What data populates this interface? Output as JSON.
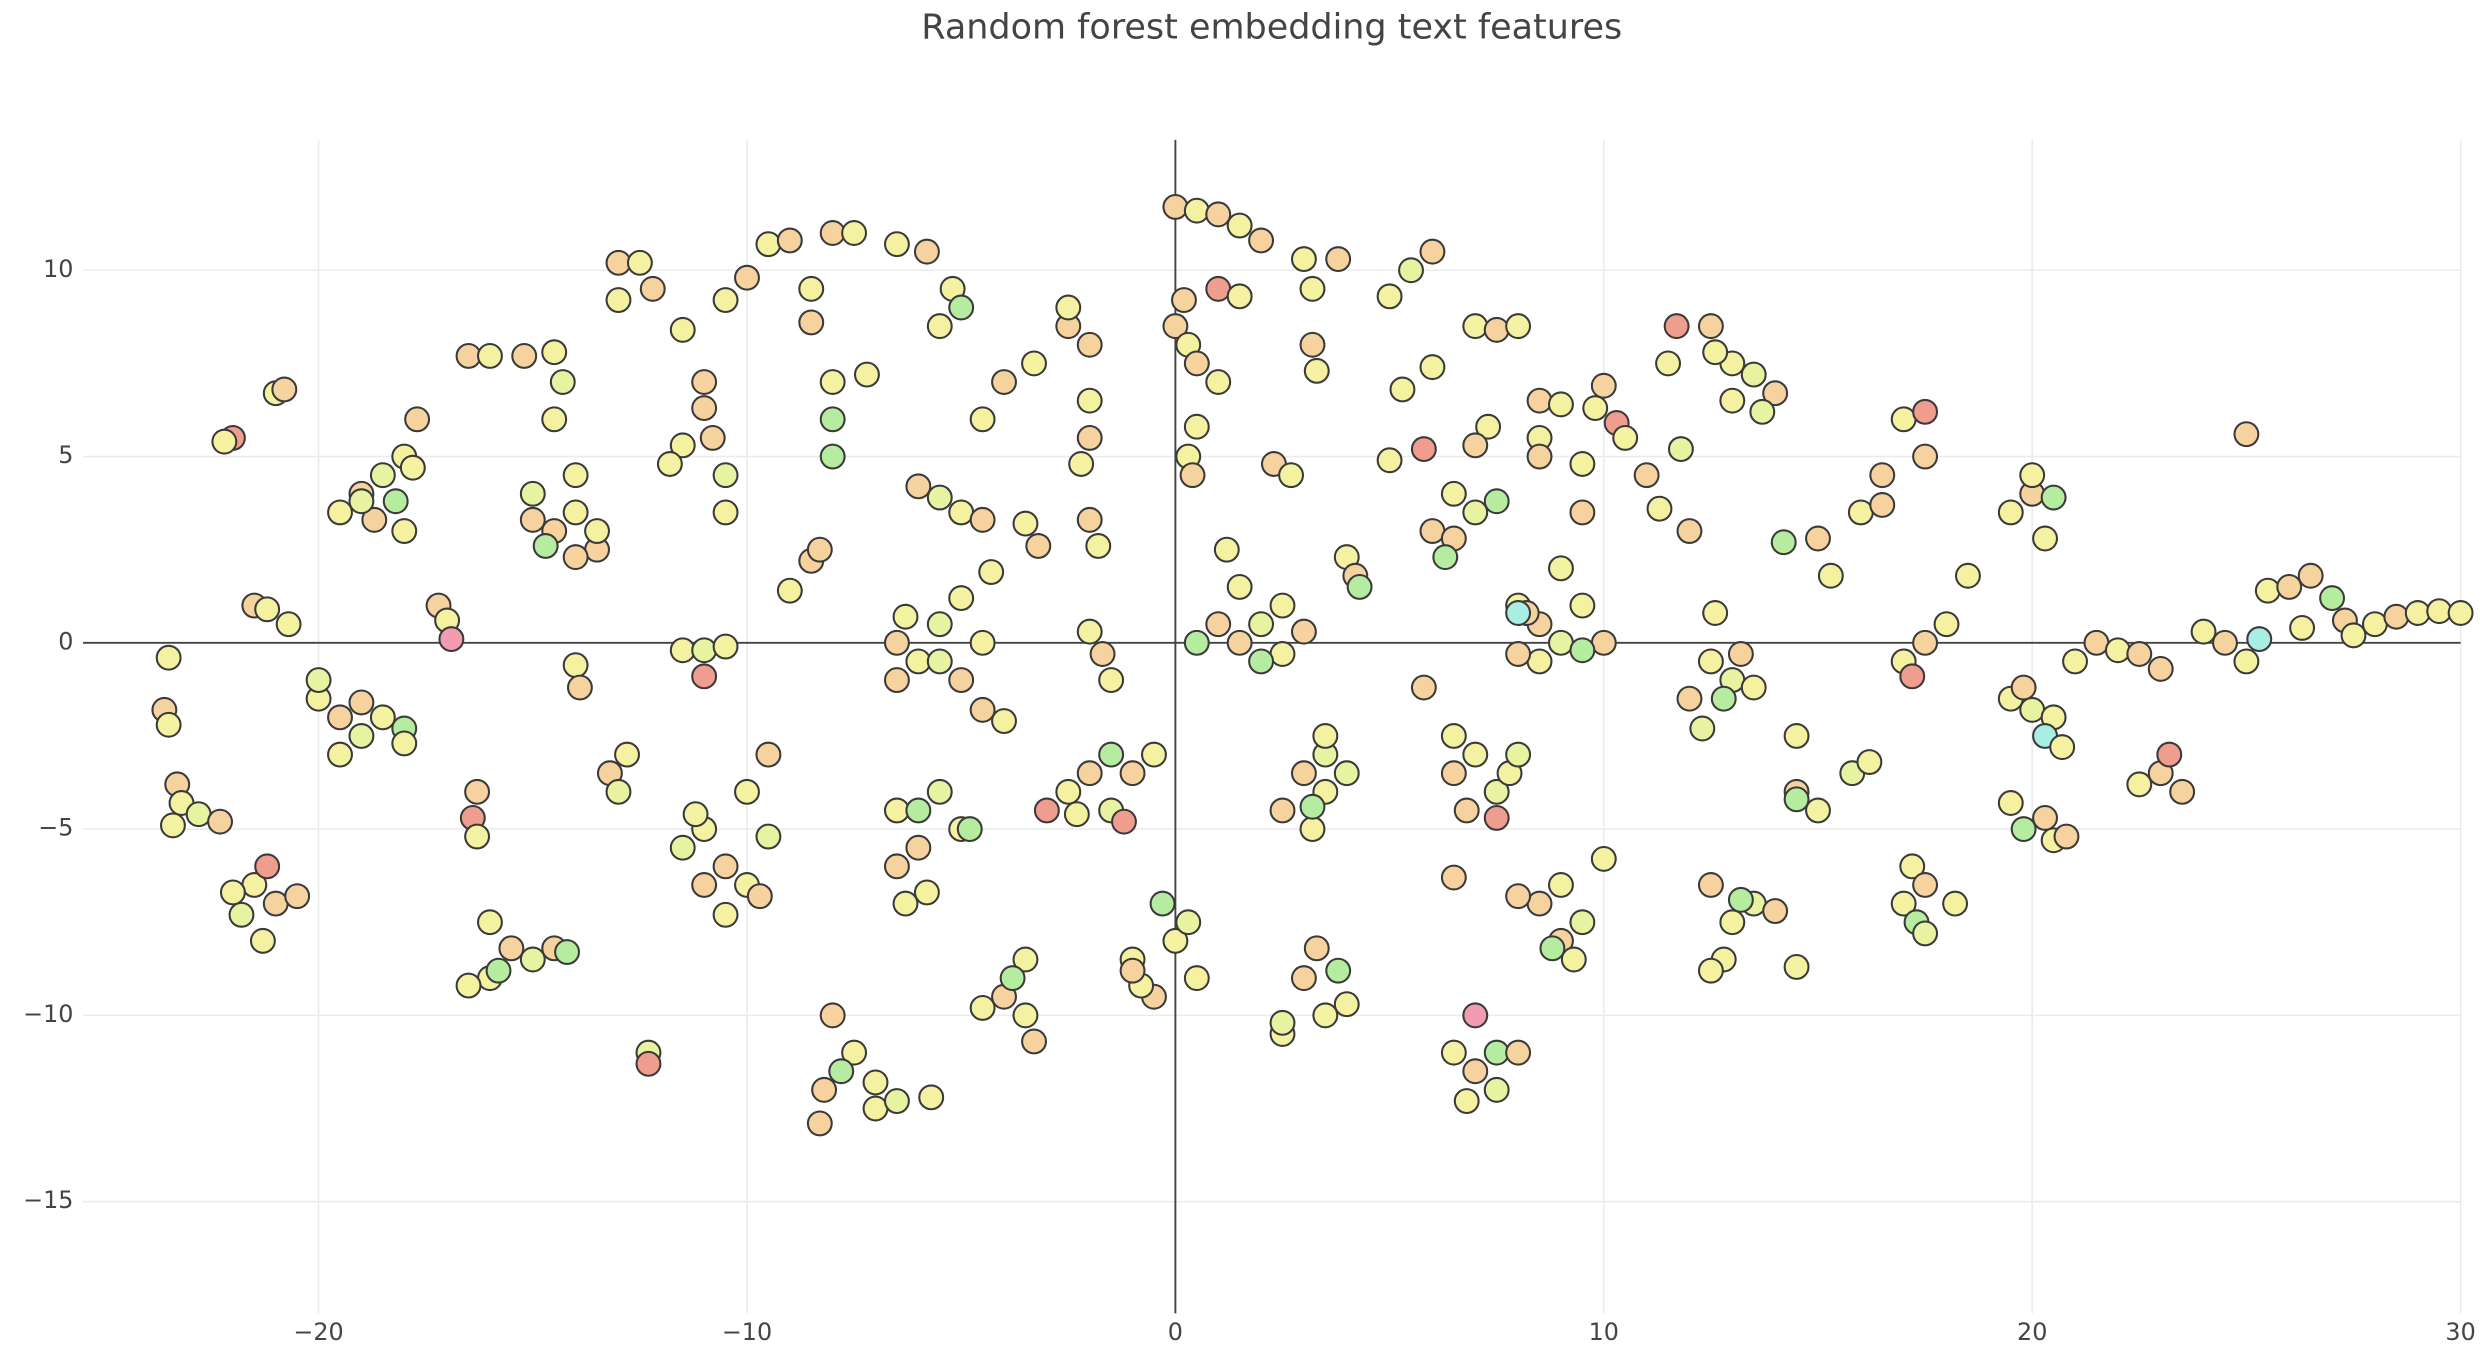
{
  "chart_data": {
    "type": "scatter",
    "title": "Random forest embedding text features",
    "xlim": [
      -25.5,
      30
    ],
    "ylim": [
      -18,
      13.5
    ],
    "xticks": [
      {
        "value": -20,
        "label": "−20"
      },
      {
        "value": -10,
        "label": "−10"
      },
      0,
      10,
      20,
      30
    ],
    "yticks": [
      {
        "value": -15,
        "label": "−15"
      },
      {
        "value": -10,
        "label": "−10"
      },
      {
        "value": -5,
        "label": "−5"
      },
      0,
      5,
      10
    ],
    "grid": true,
    "zeroline": true,
    "marker_outline": "#3a3a3a",
    "x": [
      -23.5,
      -23.6,
      -23.5,
      -23.3,
      -23.2,
      -22.8,
      -22.3,
      -23.4,
      -22,
      -22.2,
      -21,
      -20.8,
      -21.5,
      -21.2,
      -20.7,
      -21.5,
      -21,
      -21.8,
      -21.3,
      -20.5,
      -21.2,
      -22,
      -19.5,
      -19,
      -18.5,
      -18,
      -18.7,
      -18,
      -19,
      -17.7,
      -18.2,
      -17.8,
      -20,
      -19.5,
      -19,
      -18.5,
      -18,
      -19.5,
      -19,
      -20,
      -18,
      -16.5,
      -16,
      -15.2,
      -14.5,
      -17.2,
      -17,
      -16.9,
      -16.3,
      -16.4,
      -16.3,
      -16,
      -15.5,
      -16,
      -15,
      -14.5,
      -16.5,
      -15.8,
      -14.2,
      -14.5,
      -14,
      -13.5,
      -14,
      -15,
      -14.5,
      -14.3,
      -13.5,
      -14,
      -15,
      -14.7,
      -13,
      -12.5,
      -13,
      -12.2,
      -14,
      -13.9,
      -13.2,
      -13,
      -12.8,
      -12.3,
      -12.3,
      -11.5,
      -11,
      -11.5,
      -10.8,
      -10.5,
      -11.8,
      -10.5,
      -11,
      -11.5,
      -11,
      -10.5,
      -11,
      -11,
      -10.5,
      -11.5,
      -10,
      -9.5,
      -10,
      -11,
      -10.5,
      -9.5,
      -9.7,
      -11.2,
      -10.5,
      -10,
      -9.5,
      -9,
      -8.5,
      -8.5,
      -8,
      -7.5,
      -8,
      -8,
      -8,
      -8.5,
      -9,
      -8.3,
      -7.2,
      -8,
      -7.5,
      -8.2,
      -7,
      -6.5,
      -8.3,
      -7,
      -5.7,
      -7.8,
      -6.5,
      -5.8,
      -5.2,
      -5.5,
      -5,
      -6.5,
      -6,
      -5.5,
      -5,
      -4.5,
      -6.5,
      -5,
      -4.3,
      -4.5,
      -4,
      -5.5,
      -6.3,
      -6,
      -5.5,
      -5,
      -4.5,
      -6.5,
      -6,
      -5.5,
      -5,
      -6.5,
      -5.8,
      -4.8,
      -6.3,
      -6,
      -4.5,
      -4,
      -3.3,
      -2.5,
      -2.5,
      -3.5,
      -3.2,
      -3.5,
      -4,
      -3.5,
      -3.3,
      -3.8,
      -4.5,
      -2,
      -2,
      -2,
      -2.2,
      -2,
      -1.8,
      -2,
      -1.7,
      -1.5,
      -2,
      -2.5,
      -1.5,
      -1,
      -0.5,
      -2.3,
      -1.2,
      -3,
      -1.5,
      -1,
      -0.5,
      0,
      0.3,
      -0.8,
      -1,
      0.5,
      -0.3,
      0,
      0.5,
      1,
      1.5,
      2,
      0,
      0.3,
      0.5,
      1,
      0.2,
      0.3,
      0.4,
      0.5,
      1,
      1.5,
      1.5,
      1.5,
      2,
      2.5,
      1,
      2.5,
      3,
      2,
      1.2,
      0.5,
      2.3,
      2.7,
      3.2,
      3.2,
      3.3,
      3,
      3.8,
      3,
      3.5,
      3.5,
      2.5,
      3.2,
      4,
      3.5,
      3.2,
      2.5,
      3,
      3.5,
      3.3,
      4,
      2.5,
      3.8,
      4,
      4.2,
      4.3,
      5,
      5.5,
      6,
      5.3,
      6,
      5,
      5.8,
      6,
      6.5,
      7,
      6.5,
      7.5,
      6.3,
      7.3,
      7,
      7,
      7.5,
      8,
      6.5,
      7,
      7.5,
      6.8,
      7.8,
      6.5,
      7.5,
      8,
      6.5,
      6.5,
      7,
      7.5,
      7,
      6.8,
      7.5,
      8,
      5.8,
      8.5,
      9,
      9.8,
      10,
      10.3,
      8.5,
      8.5,
      9.5,
      8,
      8.5,
      9,
      9.5,
      8.2,
      8.5,
      10,
      9.5,
      9,
      9.5,
      8,
      8,
      8.5,
      9,
      9.5,
      9,
      9.3,
      8,
      10,
      8.8,
      10.5,
      11,
      11.3,
      11.8,
      12,
      11.5,
      11.7,
      12.5,
      13,
      13.5,
      13,
      14,
      12.6,
      13.7,
      12.5,
      13,
      12,
      13.5,
      12.6,
      13.2,
      12.3,
      12.8,
      12.5,
      13,
      13.5,
      12.8,
      14,
      12.5,
      13.2,
      14.5,
      14.2,
      15,
      16,
      16.5,
      17,
      17.5,
      15.3,
      16.5,
      17.5,
      14.5,
      14.5,
      15,
      15.8,
      14.5,
      16.2,
      17,
      17.5,
      18,
      17.2,
      18.5,
      17.2,
      17.5,
      17,
      17.3,
      17.5,
      18.2,
      19.5,
      20,
      20,
      20.5,
      20.3,
      19.5,
      20,
      20.5,
      20.3,
      20.7,
      19.8,
      19.5,
      20.3,
      20.5,
      19.8,
      20.8,
      21,
      21.5,
      22,
      23,
      22.5,
      22.5,
      23,
      23.2,
      23.5,
      24,
      24.5,
      25,
      25,
      25.3,
      25.5,
      26,
      26.5,
      27,
      27.3,
      26.3,
      27.5,
      28,
      28.5,
      29,
      29.5,
      30
    ],
    "values": [
      -0.4,
      -1.8,
      -2.2,
      -3.8,
      -4.3,
      -4.6,
      -4.8,
      -4.9,
      5.5,
      5.4,
      6.7,
      6.8,
      1,
      0.9,
      0.5,
      -6.5,
      -7,
      -7.3,
      -8,
      -6.8,
      -6,
      -6.7,
      3.5,
      4,
      4.5,
      5,
      3.3,
      3,
      3.8,
      6,
      3.8,
      4.7,
      -1.5,
      -2,
      -2.5,
      -2,
      -2.3,
      -3,
      -1.6,
      -1,
      -2.7,
      7.7,
      7.7,
      7.7,
      7.8,
      1,
      0.6,
      0.1,
      -4,
      -4.7,
      -5.2,
      -7.5,
      -8.2,
      -9,
      -8.5,
      -8.2,
      -9.2,
      -8.8,
      -8.3,
      3,
      3.5,
      2.5,
      4.5,
      4,
      6,
      7,
      3,
      2.3,
      3.3,
      2.6,
      10.2,
      10.2,
      9.2,
      9.5,
      -0.6,
      -1.2,
      -3.5,
      -4,
      -3,
      -11,
      -11.3,
      8.4,
      7,
      5.3,
      5.5,
      4.5,
      4.8,
      3.5,
      6.3,
      -0.2,
      -0.2,
      -0.1,
      -0.9,
      -5,
      -6,
      -5.5,
      -4,
      -3,
      -6.5,
      -6.5,
      -7.3,
      -5.2,
      -6.8,
      -4.6,
      9.2,
      9.8,
      10.7,
      10.8,
      9.5,
      8.6,
      11,
      11,
      7,
      6,
      5,
      2.2,
      1.4,
      2.5,
      7.2,
      -10,
      -11,
      -12,
      -12.5,
      -12.3,
      -12.9,
      -11.8,
      -12.2,
      -11.5,
      10.7,
      10.5,
      9.5,
      8.5,
      9,
      0,
      -0.5,
      0.5,
      -1,
      0,
      -1,
      1.2,
      1.9,
      -1.8,
      -2.1,
      -0.5,
      0.7,
      4.2,
      3.9,
      3.5,
      3.3,
      -4.5,
      -5.5,
      -4,
      -5,
      -6,
      -6.7,
      -5,
      -7,
      -4.5,
      6,
      7,
      7.5,
      8.5,
      9,
      3.2,
      2.6,
      -8.5,
      -9.5,
      -10,
      -10.7,
      -9,
      -9.8,
      8,
      6.5,
      5.5,
      4.8,
      3.3,
      2.6,
      0.3,
      -0.3,
      -1,
      -3.5,
      -4,
      -4.5,
      -3.5,
      -3,
      -4.6,
      -4.8,
      -4.5,
      -3,
      -8.5,
      -9.5,
      -8,
      -7.5,
      -9.2,
      -8.8,
      -9,
      -7,
      11.7,
      11.6,
      11.5,
      11.2,
      10.8,
      8.5,
      8,
      7.5,
      7,
      9.2,
      5,
      4.5,
      5.8,
      9.5,
      9.3,
      1.5,
      0,
      0.5,
      1,
      0.5,
      -0.3,
      0.3,
      -0.5,
      2.5,
      0,
      4.8,
      4.5,
      9.5,
      8,
      7.3,
      10.3,
      10.3,
      -3.5,
      -4,
      -3,
      -4.5,
      -5,
      -3.5,
      -2.5,
      -4.4,
      -10.5,
      -9,
      -10,
      -8.2,
      -9.7,
      -10.2,
      -8.8,
      2.3,
      1.8,
      1.5,
      9.3,
      10,
      10.5,
      6.8,
      7.4,
      4.9,
      5.2,
      3,
      4,
      3.5,
      2.8,
      3.8,
      2.3,
      5.8,
      5.3,
      8.5,
      8.4,
      8.5,
      -3.5,
      -3,
      -4,
      -4.5,
      -3.5,
      -2.5,
      -4.7,
      -3,
      -6.3,
      -11,
      -11.5,
      -12,
      -10,
      -12.3,
      -11,
      -11,
      -1.2,
      6.5,
      6.4,
      6.3,
      6.9,
      5.9,
      5.5,
      5,
      4.8,
      1,
      0.5,
      0,
      1,
      0.8,
      -0.5,
      0,
      -0.2,
      2,
      3.5,
      -0.3,
      0.8,
      -7,
      -6.5,
      -7.5,
      -8,
      -8.5,
      -6.8,
      -5.8,
      -8.2,
      5.5,
      4.5,
      3.6,
      5.2,
      3,
      7.5,
      8.5,
      8.5,
      7.5,
      7.2,
      6.5,
      6.7,
      7.8,
      6.2,
      -0.5,
      -1,
      -1.5,
      -1.2,
      0.8,
      -0.3,
      -2.3,
      -1.5,
      -6.5,
      -7.5,
      -7,
      -8.5,
      -7.2,
      -8.8,
      -6.9,
      -8.7,
      2.7,
      2.8,
      3.5,
      4.5,
      6,
      5,
      1.8,
      3.7,
      6.2,
      -2.5,
      -4,
      -4.5,
      -3.5,
      -4.2,
      -3.2,
      -0.5,
      0,
      0.5,
      -0.9,
      1.8,
      -6,
      -6.5,
      -7,
      -7.5,
      -7.8,
      -7,
      3.5,
      4,
      4.5,
      3.9,
      2.8,
      -1.5,
      -1.8,
      -2,
      -2.5,
      -2.8,
      -1.2,
      -4.3,
      -4.7,
      -5.3,
      -5,
      -5.2,
      -0.5,
      0,
      -0.2,
      -0.7,
      -0.3,
      -3.8,
      -3.5,
      -3,
      -4,
      0.3,
      0,
      5.6,
      -0.5,
      0.1,
      1.4,
      1.5,
      1.8,
      1.2,
      0.6,
      0.4,
      0.2,
      0.5,
      0.7,
      0.8,
      0.85,
      0.8
    ],
    "colors": [
      "#f4f1a0",
      "#f6d29e",
      "#f4f1a0",
      "#f6d29e",
      "#f4f1a0",
      "#e8f3a2",
      "#f6d29e",
      "#f4f1a0",
      "#ee9d8e",
      "#f4f1a0",
      "#f4f1a0",
      "#f6d29e",
      "#f6d29e",
      "#f4f1a0",
      "#f4f1a0",
      "#f4f1a0",
      "#f6d29e",
      "#e8f3a2",
      "#f4f1a0",
      "#f6d29e",
      "#ee9d8e",
      "#f4f1a0",
      "#f4f1a0",
      "#f6d29e",
      "#e8f3a2",
      "#f4f1a0",
      "#f6d29e",
      "#f4f1a0",
      "#e8f3a2",
      "#f6d29e",
      "#b5eca0",
      "#f4f1a0",
      "#f4f1a0",
      "#f6d29e",
      "#e8f3a2",
      "#f4f1a0",
      "#b5eca0",
      "#f4f1a0",
      "#f6d29e",
      "#e8f3a2",
      "#f4f1a0",
      "#f6d29e",
      "#f4f1a0",
      "#f6d29e",
      "#f4f1a0",
      "#f6d29e",
      "#f4f1a0",
      "#f39bb0",
      "#f6d29e",
      "#ee9d8e",
      "#f4f1a0",
      "#f4f1a0",
      "#f6d29e",
      "#f4f1a0",
      "#e8f3a2",
      "#f6d29e",
      "#f4f1a0",
      "#b5eca0",
      "#b5eca0",
      "#f6d29e",
      "#f4f1a0",
      "#f6d29e",
      "#f4f1a0",
      "#e8f3a2",
      "#f4f1a0",
      "#e8f3a2",
      "#f4f1a0",
      "#f6d29e",
      "#f6d29e",
      "#b5eca0",
      "#f6d29e",
      "#f4f1a0",
      "#f4f1a0",
      "#f6d29e",
      "#f4f1a0",
      "#f6d29e",
      "#f6d29e",
      "#e8f3a2",
      "#f4f1a0",
      "#e8f3a2",
      "#ee9d8e",
      "#f4f1a0",
      "#f6d29e",
      "#f4f1a0",
      "#f6d29e",
      "#e8f3a2",
      "#f4f1a0",
      "#f4f1a0",
      "#f6d29e",
      "#f4f1a0",
      "#e8f3a2",
      "#f4f1a0",
      "#ee9d8e",
      "#f4f1a0",
      "#f6d29e",
      "#e8f3a2",
      "#f4f1a0",
      "#f6d29e",
      "#f4f1a0",
      "#f6d29e",
      "#f4f1a0",
      "#e8f3a2",
      "#f6d29e",
      "#f4f1a0",
      "#f4f1a0",
      "#f6d29e",
      "#f4f1a0",
      "#f6d29e",
      "#f4f1a0",
      "#f6d29e",
      "#f6d29e",
      "#f4f1a0",
      "#f4f1a0",
      "#b5eca0",
      "#b5eca0",
      "#f6d29e",
      "#f4f1a0",
      "#f6d29e",
      "#f4f1a0",
      "#f6d29e",
      "#f4f1a0",
      "#f6d29e",
      "#f4f1a0",
      "#e8f3a2",
      "#f6d29e",
      "#f4f1a0",
      "#f4f1a0",
      "#b5eca0",
      "#f4f1a0",
      "#f6d29e",
      "#f4f1a0",
      "#f4f1a0",
      "#b5eca0",
      "#f6d29e",
      "#f4f1a0",
      "#e8f3a2",
      "#f6d29e",
      "#f4f1a0",
      "#f6d29e",
      "#f4f1a0",
      "#f4f1a0",
      "#f6d29e",
      "#f4f1a0",
      "#e8f3a2",
      "#f4f1a0",
      "#f6d29e",
      "#e8f3a2",
      "#f4f1a0",
      "#f6d29e",
      "#f4f1a0",
      "#f6d29e",
      "#e8f3a2",
      "#f4f1a0",
      "#f6d29e",
      "#f4f1a0",
      "#b5eca0",
      "#f4f1a0",
      "#b5eca0",
      "#f4f1a0",
      "#f6d29e",
      "#f4f1a0",
      "#f6d29e",
      "#f4f1a0",
      "#f4f1a0",
      "#f6d29e",
      "#f4f1a0",
      "#f6d29e",
      "#f4f1a0",
      "#f6d29e",
      "#b5eca0",
      "#f4f1a0",
      "#f6d29e",
      "#f4f1a0",
      "#f6d29e",
      "#f4f1a0",
      "#f6d29e",
      "#f4f1a0",
      "#f4f1a0",
      "#f6d29e",
      "#f4f1a0",
      "#f6d29e",
      "#f4f1a0",
      "#e8f3a2",
      "#f6d29e",
      "#f4f1a0",
      "#f4f1a0",
      "#ee9d8e",
      "#ee9d8e",
      "#b5eca0",
      "#f4f1a0",
      "#f6d29e",
      "#f4f1a0",
      "#e8f3a2",
      "#f4f1a0",
      "#f6d29e",
      "#f4f1a0",
      "#b5eca0",
      "#f6d29e",
      "#f4f1a0",
      "#f6d29e",
      "#f4f1a0",
      "#f6d29e",
      "#f6d29e",
      "#f4f1a0",
      "#f6d29e",
      "#f4f1a0",
      "#f6d29e",
      "#f4f1a0",
      "#f6d29e",
      "#f4f1a0",
      "#ee9d8e",
      "#f4f1a0",
      "#f4f1a0",
      "#f6d29e",
      "#e8f3a2",
      "#f4f1a0",
      "#f6d29e",
      "#f4f1a0",
      "#f6d29e",
      "#b5eca0",
      "#f4f1a0",
      "#b5eca0",
      "#f6d29e",
      "#f4f1a0",
      "#f4f1a0",
      "#f6d29e",
      "#f4f1a0",
      "#f4f1a0",
      "#f6d29e",
      "#f6d29e",
      "#f4f1a0",
      "#e8f3a2",
      "#f6d29e",
      "#f4f1a0",
      "#e8f3a2",
      "#f4f1a0",
      "#b5eca0",
      "#f4f1a0",
      "#f6d29e",
      "#f4f1a0",
      "#f6d29e",
      "#f4f1a0",
      "#e8f3a2",
      "#b5eca0",
      "#f4f1a0",
      "#f6d29e",
      "#b5eca0",
      "#f4f1a0",
      "#e8f3a2",
      "#f6d29e",
      "#f4f1a0",
      "#f4f1a0",
      "#f4f1a0",
      "#ee9d8e",
      "#f6d29e",
      "#f4f1a0",
      "#e8f3a2",
      "#f6d29e",
      "#b5eca0",
      "#b5eca0",
      "#f4f1a0",
      "#f6d29e",
      "#f4f1a0",
      "#f6d29e",
      "#f4f1a0",
      "#f6d29e",
      "#f4f1a0",
      "#e8f3a2",
      "#f6d29e",
      "#f4f1a0",
      "#f4f1a0",
      "#ee9d8e",
      "#e8f3a2",
      "#f6d29e",
      "#f4f1a0",
      "#f6d29e",
      "#e8f3a2",
      "#f39bb0",
      "#f4f1a0",
      "#b5eca0",
      "#f6d29e",
      "#f6d29e",
      "#f6d29e",
      "#f4f1a0",
      "#f4f1a0",
      "#f6d29e",
      "#ee9d8e",
      "#f4f1a0",
      "#f6d29e",
      "#f4f1a0",
      "#f4f1a0",
      "#f6d29e",
      "#e8f3a2",
      "#f4f1a0",
      "#f6d29e",
      "#f4f1a0",
      "#f6d29e",
      "#b5eca0",
      "#f4f1a0",
      "#f6d29e",
      "#f6d29e",
      "#a9eee2",
      "#f6d29e",
      "#f4f1a0",
      "#e8f3a2",
      "#f6d29e",
      "#f4f1a0",
      "#f6d29e",
      "#f4f1a0",
      "#b5eca0",
      "#f4f1a0",
      "#f6d29e",
      "#f4f1a0",
      "#e8f3a2",
      "#f6d29e",
      "#f4f1a0",
      "#ee9d8e",
      "#f6d29e",
      "#f4f1a0",
      "#e8f3a2",
      "#f4f1a0",
      "#f6d29e",
      "#f4f1a0",
      "#e8f3a2",
      "#f4f1a0",
      "#e8f3a2",
      "#f6d29e",
      "#f4f1a0",
      "#f4f1a0",
      "#f6d29e",
      "#e8f3a2",
      "#b5eca0",
      "#f6d29e",
      "#f4f1a0",
      "#e8f3a2",
      "#f4f1a0",
      "#f6d29e",
      "#f4f1a0",
      "#b5eca0",
      "#f4f1a0",
      "#b5eca0",
      "#f6d29e",
      "#f4f1a0",
      "#f6d29e",
      "#f4f1a0",
      "#f6d29e",
      "#f4f1a0",
      "#f6d29e",
      "#ee9d8e",
      "#f4f1a0",
      "#f6d29e",
      "#f4f1a0",
      "#e8f3a2",
      "#b5eca0",
      "#f4f1a0",
      "#f4f1a0",
      "#f6d29e",
      "#f4f1a0",
      "#ee9d8e",
      "#f4f1a0",
      "#f4f1a0",
      "#f6d29e",
      "#f4f1a0",
      "#b5eca0",
      "#e8f3a2",
      "#f4f1a0",
      "#f4f1a0",
      "#f6d29e",
      "#f4f1a0",
      "#b5eca0",
      "#f4f1a0",
      "#f4f1a0",
      "#e8f3a2",
      "#f4f1a0",
      "#a9eee2",
      "#f4f1a0",
      "#f6d29e",
      "#f4f1a0",
      "#f6d29e",
      "#f4f1a0",
      "#b5eca0",
      "#f6d29e",
      "#f4f1a0",
      "#f6d29e",
      "#f4f1a0",
      "#f6d29e",
      "#f6d29e",
      "#f4f1a0",
      "#f6d29e",
      "#ee9d8e",
      "#f6d29e",
      "#f4f1a0",
      "#f6d29e",
      "#f6d29e",
      "#f4f1a0",
      "#a9eee2",
      "#f4f1a0",
      "#f6d29e",
      "#f6d29e",
      "#b5eca0",
      "#f6d29e",
      "#f4f1a0",
      "#f4f1a0",
      "#f4f1a0",
      "#f6d29e",
      "#f4f1a0",
      "#f4f1a0",
      "#f4f1a0"
    ]
  }
}
